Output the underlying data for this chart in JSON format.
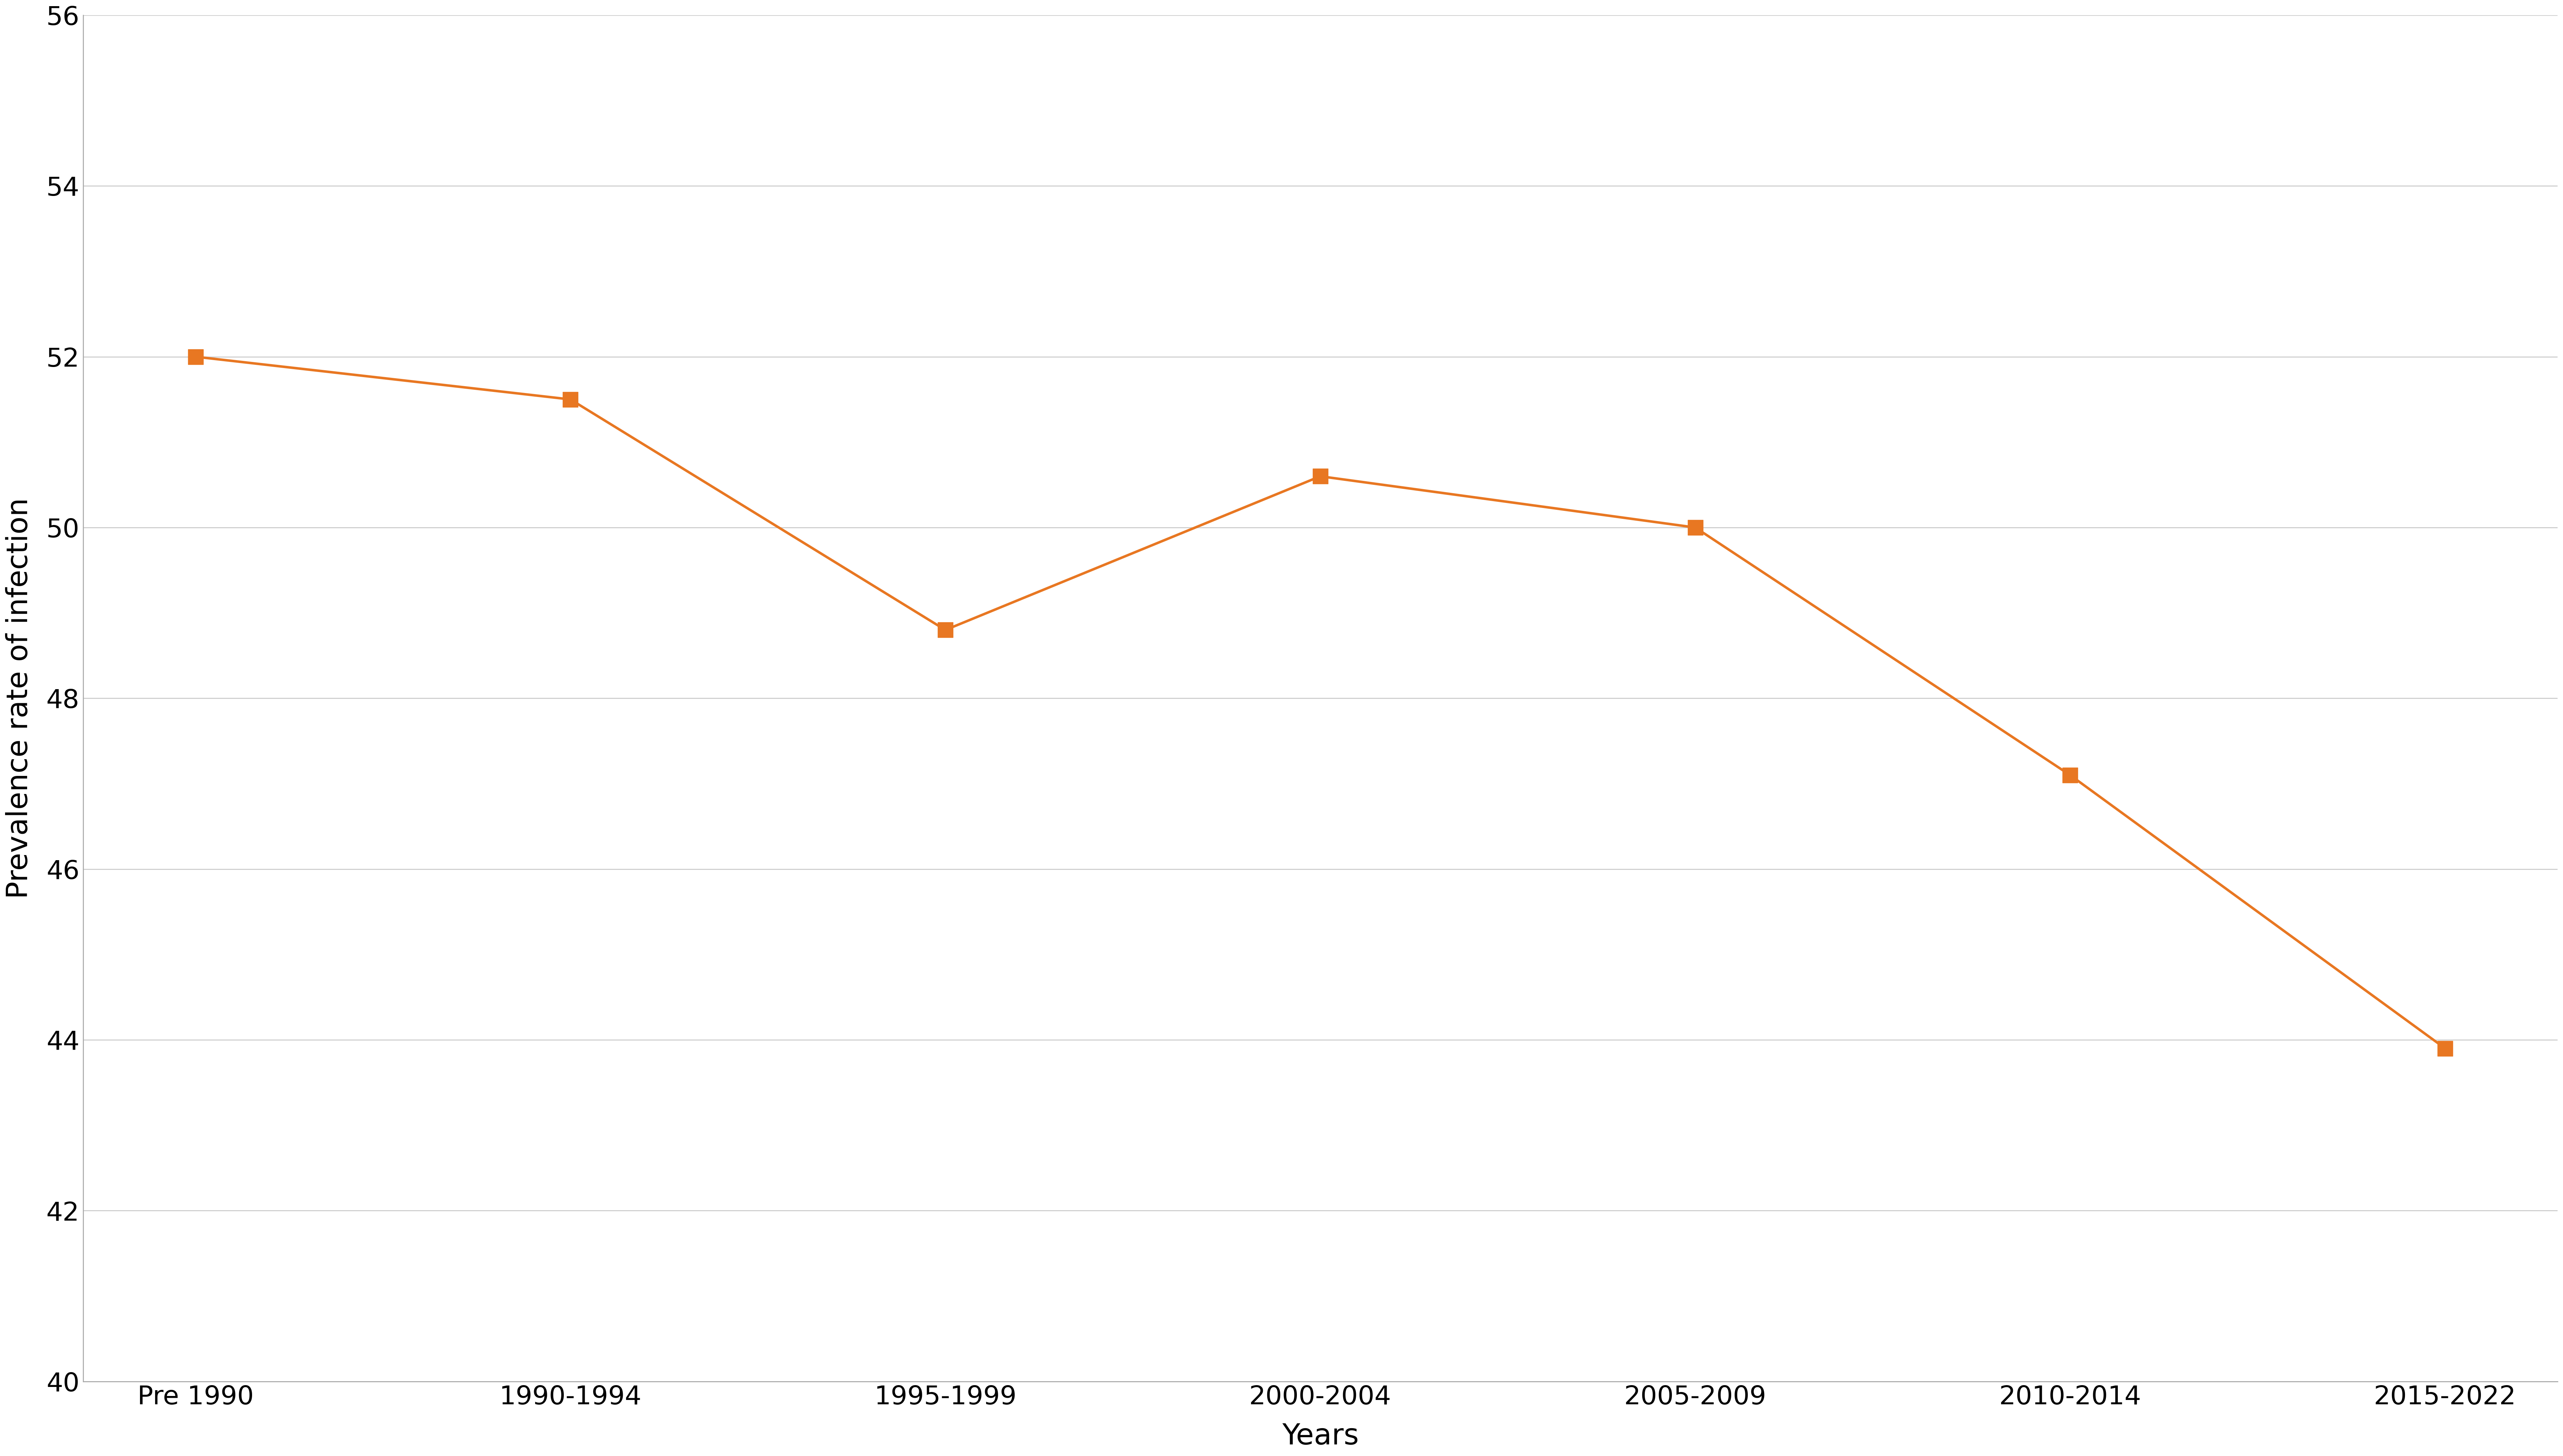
{
  "x_labels": [
    "Pre 1990",
    "1990-1994",
    "1995-1999",
    "2000-2004",
    "2005-2009",
    "2010-2014",
    "2015-2022"
  ],
  "y_values": [
    52.0,
    51.5,
    48.8,
    50.6,
    50.0,
    47.1,
    43.9
  ],
  "line_color": "#E87722",
  "marker_color": "#E87722",
  "marker_style": "s",
  "marker_size": 30,
  "line_width": 5.0,
  "ylabel": "Prevalence rate of infection",
  "xlabel": "Years",
  "ylim": [
    40,
    56
  ],
  "yticks": [
    40,
    42,
    44,
    46,
    48,
    50,
    52,
    54,
    56
  ],
  "grid_color": "#cccccc",
  "grid_linewidth": 2.0,
  "background_color": "#ffffff",
  "tick_fontsize": 52,
  "label_fontsize": 58,
  "spine_color": "#aaaaaa"
}
